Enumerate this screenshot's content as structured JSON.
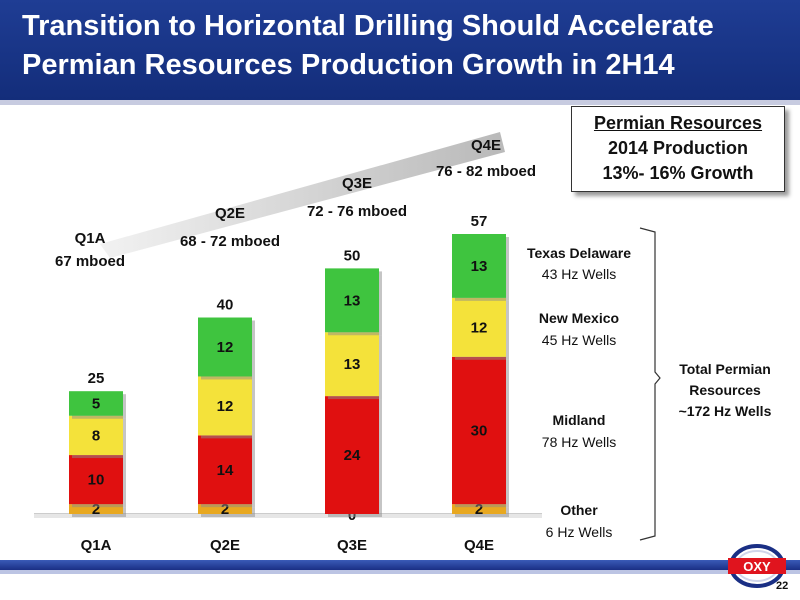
{
  "header": {
    "title_line1": "Transition to Horizontal Drilling Should Accelerate",
    "title_line2": "Permian Resources Production Growth in 2H14"
  },
  "info_box": {
    "title": "Permian Resources",
    "line1": "2014 Production",
    "line2": "13%- 16% Growth"
  },
  "chart_data": {
    "type": "bar",
    "stacked": true,
    "categories": [
      "Q1A",
      "Q2E",
      "Q3E",
      "Q4E"
    ],
    "series": [
      {
        "name": "Other",
        "color": "#e8a820",
        "values": [
          2,
          2,
          0,
          2
        ]
      },
      {
        "name": "Midland",
        "color": "#e01010",
        "values": [
          10,
          14,
          24,
          30
        ]
      },
      {
        "name": "New Mexico",
        "color": "#f4e23a",
        "values": [
          8,
          12,
          13,
          12
        ]
      },
      {
        "name": "Texas Delaware",
        "color": "#3fc43f",
        "values": [
          5,
          12,
          13,
          13
        ]
      }
    ],
    "totals": [
      "25",
      "40",
      "50",
      "57"
    ],
    "ylim": [
      0,
      57
    ],
    "production_labels": [
      {
        "quarter": "Q1A",
        "value": "67 mboed"
      },
      {
        "quarter": "Q2E",
        "value": "68 - 72 mboed"
      },
      {
        "quarter": "Q3E",
        "value": "72 - 76 mboed"
      },
      {
        "quarter": "Q4E",
        "value": "76 - 82 mboed"
      }
    ]
  },
  "legend": [
    {
      "name": "Texas Delaware",
      "wells": "43 Hz Wells"
    },
    {
      "name": "New Mexico",
      "wells": "45 Hz Wells"
    },
    {
      "name": "Midland",
      "wells": "78 Hz Wells"
    },
    {
      "name": "Other",
      "wells": "6 Hz Wells"
    }
  ],
  "total": {
    "line1": "Total Permian",
    "line2": "Resources",
    "line3": "~172 Hz Wells"
  },
  "logo_text": "OXY",
  "page_number": "22"
}
